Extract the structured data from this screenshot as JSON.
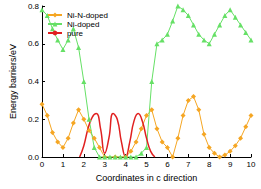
{
  "chart_data": {
    "type": "line",
    "x_label": "Coordinates in c direction",
    "y_label": "Energy barriers/eV",
    "xlim": [
      0,
      10
    ],
    "xticks": [
      0,
      1,
      2,
      3,
      4,
      5,
      6,
      7,
      8,
      9,
      10
    ],
    "ylim": [
      0,
      0.8
    ],
    "yticks": [
      {
        "value": 0,
        "label": "0.0"
      },
      {
        "value": 0.2,
        "label": "0.2"
      },
      {
        "value": 0.4,
        "label": "0.4"
      },
      {
        "value": 0.6,
        "label": "0.6"
      },
      {
        "value": 0.8,
        "label": "0.8"
      }
    ],
    "grid": false,
    "legend": "top-left",
    "series": [
      {
        "name": "Ni-N-doped",
        "color": "#f5a623",
        "marker": "diamond",
        "line_style": "solid",
        "x": [
          0,
          0.25,
          0.5,
          0.75,
          1.0,
          1.25,
          1.5,
          1.75,
          2.0,
          2.25,
          2.5,
          2.75,
          3.0,
          3.5,
          4.0,
          4.25,
          4.5,
          4.75,
          5.0,
          5.25,
          5.5,
          5.75,
          6.0,
          6.25,
          6.5,
          6.75,
          7.0,
          7.25,
          7.5,
          7.75,
          8.0,
          8.25,
          8.5,
          8.75,
          9.0,
          9.25,
          9.5,
          9.75,
          10.0
        ],
        "values": [
          0.28,
          0.22,
          0.13,
          0.08,
          0.05,
          0.1,
          0.18,
          0.25,
          0.2,
          0.14,
          0.1,
          0.05,
          0.0,
          0.0,
          0.0,
          0.03,
          0.08,
          0.15,
          0.22,
          0.25,
          0.15,
          0.08,
          0.05,
          0.0,
          0.1,
          0.22,
          0.3,
          0.32,
          0.25,
          0.12,
          0.05,
          0.02,
          0.0,
          0.01,
          0.03,
          0.06,
          0.1,
          0.16,
          0.22
        ]
      },
      {
        "name": "Ni-doped",
        "color": "#66e066",
        "marker": "triangle",
        "line_style": "solid",
        "x": [
          0,
          0.25,
          0.5,
          0.75,
          1.0,
          1.25,
          1.5,
          1.75,
          2.0,
          2.25,
          2.5,
          2.75,
          3.0,
          3.25,
          3.5,
          3.75,
          4.0,
          4.25,
          4.5,
          4.75,
          5.0,
          5.25,
          5.5,
          5.75,
          6.0,
          6.25,
          6.5,
          6.75,
          7.0,
          7.25,
          7.5,
          7.75,
          8.0,
          8.25,
          8.5,
          8.75,
          9.0,
          9.25,
          9.5,
          9.75,
          10.0
        ],
        "values": [
          0.78,
          0.75,
          0.68,
          0.62,
          0.57,
          0.62,
          0.68,
          0.58,
          0.4,
          0.2,
          0.05,
          0.0,
          0.0,
          0.0,
          0.0,
          0.0,
          0.0,
          0.0,
          0.0,
          0.02,
          0.05,
          0.4,
          0.6,
          0.62,
          0.65,
          0.72,
          0.8,
          0.78,
          0.75,
          0.7,
          0.65,
          0.62,
          0.6,
          0.65,
          0.7,
          0.75,
          0.78,
          0.74,
          0.7,
          0.66,
          0.62
        ]
      },
      {
        "name": "pure",
        "color": "#e02020",
        "marker": "none",
        "line_style": "solid",
        "x": [
          1.8,
          2.0,
          2.2,
          2.4,
          2.6,
          2.8,
          3.0,
          3.2,
          3.4,
          3.6,
          3.8,
          4.0,
          4.2,
          4.4,
          4.6,
          4.8,
          5.0,
          5.2,
          5.4
        ],
        "values": [
          0.0,
          0.06,
          0.15,
          0.21,
          0.23,
          0.15,
          0.02,
          0.1,
          0.23,
          0.2,
          0.08,
          0.0,
          0.08,
          0.19,
          0.23,
          0.19,
          0.1,
          0.03,
          0.0
        ]
      }
    ]
  }
}
